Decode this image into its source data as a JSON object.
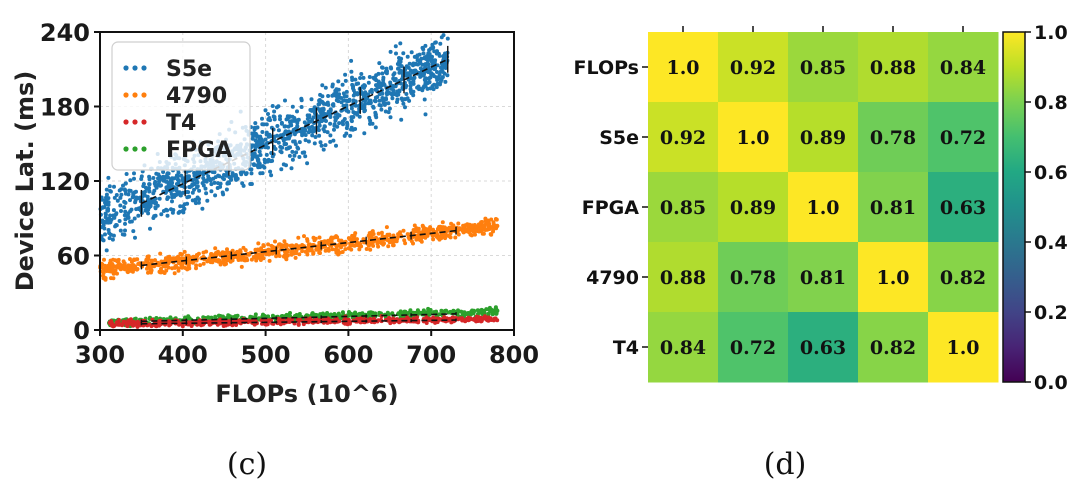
{
  "captions": {
    "left": "(c)",
    "right": "(d)"
  },
  "colors": {
    "S5e": "#1f77b4",
    "4790": "#ff7f0e",
    "T4": "#d62728",
    "FPGA": "#2ca02c",
    "fit_line": "#111111"
  },
  "chart_data": [
    {
      "type": "scatter",
      "xlabel": "FLOPs (10^6)",
      "ylabel": "Device Lat. (ms)",
      "xlim": [
        300,
        800
      ],
      "ylim": [
        0,
        240
      ],
      "x_ticks": [
        "300",
        "400",
        "500",
        "600",
        "700",
        "800"
      ],
      "y_ticks": [
        "0",
        "60",
        "120",
        "180",
        "240"
      ],
      "grid": true,
      "legend_position": "top-left",
      "series": [
        {
          "name": "S5e",
          "fit": {
            "x": [
              300,
              720
            ],
            "y": [
              90,
              218
            ]
          },
          "points_per_band": 1400,
          "spread": 12,
          "fit_line": {
            "x": [
              350,
              720
            ],
            "y": [
              102,
              218
            ]
          }
        },
        {
          "name": "4790",
          "fit": {
            "x": [
              300,
              780
            ],
            "y": [
              48,
              84
            ]
          },
          "points_per_band": 900,
          "spread": 3.5,
          "fit_line": {
            "x": [
              350,
              730
            ],
            "y": [
              52,
              80
            ]
          }
        },
        {
          "name": "T4",
          "fit": {
            "x": [
              310,
              780
            ],
            "y": [
              5,
              9
            ]
          },
          "points_per_band": 500,
          "spread": 1.2,
          "fit_line": {
            "x": [
              350,
              730
            ],
            "y": [
              5,
              8
            ]
          }
        },
        {
          "name": "FPGA",
          "fit": {
            "x": [
              310,
              780
            ],
            "y": [
              6,
              15
            ]
          },
          "points_per_band": 500,
          "spread": 1.5,
          "fit_line": {
            "x": [
              350,
              730
            ],
            "y": [
              7,
              13
            ]
          }
        }
      ]
    },
    {
      "type": "heatmap",
      "rows": [
        "FLOPs",
        "S5e",
        "FPGA",
        "4790",
        "T4"
      ],
      "cols": [
        "FLOPs",
        "S5e",
        "FPGA",
        "4790",
        "T4"
      ],
      "values": [
        [
          1.0,
          0.92,
          0.85,
          0.88,
          0.84
        ],
        [
          0.92,
          1.0,
          0.89,
          0.78,
          0.72
        ],
        [
          0.85,
          0.89,
          1.0,
          0.81,
          0.63
        ],
        [
          0.88,
          0.78,
          0.81,
          1.0,
          0.82
        ],
        [
          0.84,
          0.72,
          0.63,
          0.82,
          1.0
        ]
      ],
      "labels": [
        [
          "1.0",
          "0.92",
          "0.85",
          "0.88",
          "0.84"
        ],
        [
          "0.92",
          "1.0",
          "0.89",
          "0.78",
          "0.72"
        ],
        [
          "0.85",
          "0.89",
          "1.0",
          "0.81",
          "0.63"
        ],
        [
          "0.88",
          "0.78",
          "0.81",
          "1.0",
          "0.82"
        ],
        [
          "0.84",
          "0.72",
          "0.63",
          "0.82",
          "1.0"
        ]
      ],
      "colorbar": {
        "min": 0.0,
        "max": 1.0,
        "ticks": [
          "0.0",
          "0.2",
          "0.4",
          "0.6",
          "0.8",
          "1.0"
        ],
        "colormap": "viridis"
      }
    }
  ]
}
